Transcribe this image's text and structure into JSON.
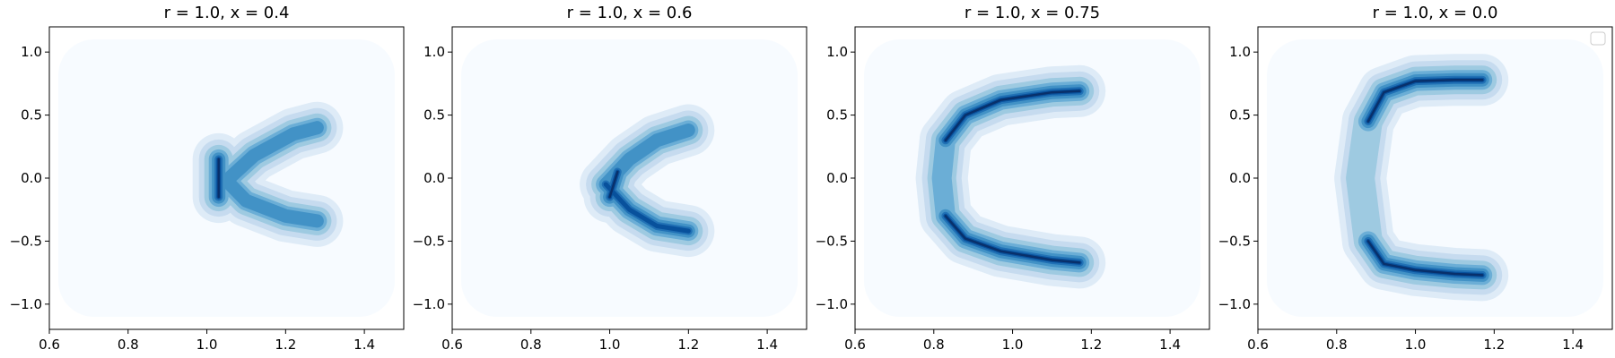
{
  "figure": {
    "background": "#ffffff",
    "colormap": [
      "#f7fbff",
      "#deebf7",
      "#c6dbef",
      "#9ecae1",
      "#6baed6",
      "#4292c6",
      "#2171b5",
      "#08519c",
      "#08306b"
    ]
  },
  "chart_data": [
    {
      "type": "contour",
      "title": "r = 1.0, x = 0.4",
      "xlim": [
        0.6,
        1.5
      ],
      "ylim": [
        -1.2,
        1.2
      ],
      "xticks": [
        0.6,
        0.8,
        1.0,
        1.2,
        1.4
      ],
      "xtick_labels": [
        "0.6",
        "0.8",
        "1.0",
        "1.2",
        "1.4"
      ],
      "yticks": [
        -1.0,
        -0.5,
        0.0,
        0.5,
        1.0
      ],
      "ytick_labels": [
        "−1.0",
        "−0.5",
        "0.0",
        "0.5",
        "1.0"
      ],
      "legend": false,
      "density_band": {
        "arms": [
          {
            "points": [
              [
                1.05,
                -0.02
              ],
              [
                1.12,
                0.18
              ],
              [
                1.22,
                0.35
              ],
              [
                1.28,
                0.4
              ]
            ],
            "peak": 0.5
          },
          {
            "points": [
              [
                1.05,
                -0.02
              ],
              [
                1.1,
                -0.18
              ],
              [
                1.2,
                -0.3
              ],
              [
                1.28,
                -0.34
              ]
            ],
            "peak": 0.55
          }
        ],
        "core": {
          "points": [
            [
              1.03,
              -0.15
            ],
            [
              1.03,
              0.15
            ]
          ],
          "peak": 1.0
        }
      }
    },
    {
      "type": "contour",
      "title": "r = 1.0, x = 0.6",
      "xlim": [
        0.6,
        1.5
      ],
      "ylim": [
        -1.2,
        1.2
      ],
      "xticks": [
        0.6,
        0.8,
        1.0,
        1.2,
        1.4
      ],
      "xtick_labels": [
        "0.6",
        "0.8",
        "1.0",
        "1.2",
        "1.4"
      ],
      "yticks": [
        -1.0,
        -0.5,
        0.0,
        0.5,
        1.0
      ],
      "ytick_labels": [
        "−1.0",
        "−0.5",
        "0.0",
        "0.5",
        "1.0"
      ],
      "legend": false,
      "density_band": {
        "arms": [
          {
            "points": [
              [
                0.99,
                -0.05
              ],
              [
                1.05,
                0.15
              ],
              [
                1.12,
                0.3
              ],
              [
                1.2,
                0.38
              ]
            ],
            "peak": 0.6
          },
          {
            "points": [
              [
                0.99,
                -0.05
              ],
              [
                1.05,
                -0.25
              ],
              [
                1.12,
                -0.38
              ],
              [
                1.2,
                -0.42
              ]
            ],
            "peak": 0.8
          }
        ],
        "core": {
          "points": [
            [
              1.0,
              -0.15
            ],
            [
              1.02,
              0.05
            ]
          ],
          "peak": 1.0
        }
      }
    },
    {
      "type": "contour",
      "title": "r = 1.0, x = 0.75",
      "xlim": [
        0.6,
        1.5
      ],
      "ylim": [
        -1.2,
        1.2
      ],
      "xticks": [
        0.6,
        0.8,
        1.0,
        1.2,
        1.4
      ],
      "xtick_labels": [
        "0.6",
        "0.8",
        "1.0",
        "1.2",
        "1.4"
      ],
      "yticks": [
        -1.0,
        -0.5,
        0.0,
        0.5,
        1.0
      ],
      "ytick_labels": [
        "−1.0",
        "−0.5",
        "0.0",
        "0.5",
        "1.0"
      ],
      "legend": false,
      "density_band": {
        "arms": [
          {
            "points": [
              [
                0.83,
                0.3
              ],
              [
                0.88,
                0.5
              ],
              [
                0.97,
                0.62
              ],
              [
                1.1,
                0.68
              ],
              [
                1.17,
                0.69
              ]
            ],
            "peak": 1.0
          },
          {
            "points": [
              [
                0.83,
                -0.3
              ],
              [
                0.88,
                -0.48
              ],
              [
                0.97,
                -0.58
              ],
              [
                1.1,
                -0.65
              ],
              [
                1.17,
                -0.67
              ]
            ],
            "peak": 1.0
          },
          {
            "points": [
              [
                0.83,
                0.3
              ],
              [
                0.82,
                0.0
              ],
              [
                0.83,
                -0.3
              ]
            ],
            "peak": 0.45
          }
        ]
      }
    },
    {
      "type": "contour",
      "title": "r = 1.0, x = 0.0",
      "xlim": [
        0.6,
        1.5
      ],
      "ylim": [
        -1.2,
        1.2
      ],
      "xticks": [
        0.6,
        0.8,
        1.0,
        1.2,
        1.4
      ],
      "xtick_labels": [
        "0.6",
        "0.8",
        "1.0",
        "1.2",
        "1.4"
      ],
      "yticks": [
        -1.0,
        -0.5,
        0.0,
        0.5,
        1.0
      ],
      "ytick_labels": [
        "−1.0",
        "−0.5",
        "0.0",
        "0.5",
        "1.0"
      ],
      "legend": true,
      "density_band": {
        "arms": [
          {
            "points": [
              [
                0.88,
                0.45
              ],
              [
                0.92,
                0.68
              ],
              [
                1.0,
                0.77
              ],
              [
                1.1,
                0.78
              ],
              [
                1.17,
                0.78
              ]
            ],
            "peak": 1.0
          },
          {
            "points": [
              [
                0.88,
                -0.5
              ],
              [
                0.92,
                -0.68
              ],
              [
                1.0,
                -0.73
              ],
              [
                1.1,
                -0.76
              ],
              [
                1.17,
                -0.77
              ]
            ],
            "peak": 1.0
          },
          {
            "points": [
              [
                0.88,
                0.45
              ],
              [
                0.86,
                0.0
              ],
              [
                0.88,
                -0.5
              ]
            ],
            "peak": 0.3
          }
        ]
      }
    }
  ]
}
